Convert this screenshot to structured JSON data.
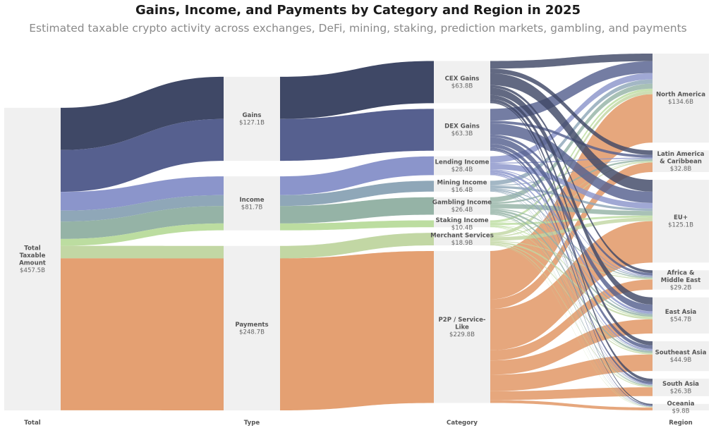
{
  "title": "Gains, Income, and Payments by Category and Region in 2025",
  "subtitle": "Estimated taxable crypto activity across exchanges, DeFi, mining, staking, prediction markets, gambling, and payments",
  "chart_data": {
    "type": "sankey",
    "unit": "$B",
    "columns": [
      "Total",
      "Type",
      "Category",
      "Region"
    ],
    "nodes": [
      {
        "id": "total",
        "column": 0,
        "label": "Total Taxable Amount",
        "value_label": "$457.5B",
        "value": 457.5
      },
      {
        "id": "gains",
        "column": 1,
        "label": "Gains",
        "value_label": "$127.1B",
        "value": 127.1
      },
      {
        "id": "income",
        "column": 1,
        "label": "Income",
        "value_label": "$81.7B",
        "value": 81.7
      },
      {
        "id": "payments",
        "column": 1,
        "label": "Payments",
        "value_label": "$248.7B",
        "value": 248.7
      },
      {
        "id": "cex",
        "column": 2,
        "label": "CEX Gains",
        "value_label": "$63.8B",
        "value": 63.8,
        "color": "#3f4866"
      },
      {
        "id": "dex",
        "column": 2,
        "label": "DEX Gains",
        "value_label": "$63.3B",
        "value": 63.3,
        "color": "#56608f"
      },
      {
        "id": "lending",
        "column": 2,
        "label": "Lending Income",
        "value_label": "$28.4B",
        "value": 28.4,
        "color": "#8b95cb"
      },
      {
        "id": "mining",
        "column": 2,
        "label": "Mining Income",
        "value_label": "$16.4B",
        "value": 16.4,
        "color": "#8fa7b8"
      },
      {
        "id": "gambling",
        "column": 2,
        "label": "Gambling Income",
        "value_label": "$26.4B",
        "value": 26.4,
        "color": "#95b3a6"
      },
      {
        "id": "staking",
        "column": 2,
        "label": "Staking Income",
        "value_label": "$10.4B",
        "value": 10.4,
        "color": "#bcdda0"
      },
      {
        "id": "merchant",
        "column": 2,
        "label": "Merchant Services",
        "value_label": "$18.9B",
        "value": 18.9,
        "color": "#c2d7a4"
      },
      {
        "id": "p2p",
        "column": 2,
        "label": "P2P / Service-Like",
        "value_label": "$229.8B",
        "value": 229.8,
        "color": "#e4a072"
      },
      {
        "id": "na",
        "column": 3,
        "label": "North America",
        "value_label": "$134.6B",
        "value": 134.6
      },
      {
        "id": "latam",
        "column": 3,
        "label": "Latin America & Caribbean",
        "value_label": "$32.8B",
        "value": 32.8
      },
      {
        "id": "eu",
        "column": 3,
        "label": "EU+",
        "value_label": "$125.1B",
        "value": 125.1
      },
      {
        "id": "mea",
        "column": 3,
        "label": "Africa & Middle East",
        "value_label": "$29.2B",
        "value": 29.2
      },
      {
        "id": "eastasia",
        "column": 3,
        "label": "East Asia",
        "value_label": "$54.7B",
        "value": 54.7
      },
      {
        "id": "sea",
        "column": 3,
        "label": "Southeast Asia",
        "value_label": "$44.9B",
        "value": 44.9
      },
      {
        "id": "southasia",
        "column": 3,
        "label": "South Asia",
        "value_label": "$26.3B",
        "value": 26.3
      },
      {
        "id": "oceania",
        "column": 3,
        "label": "Oceania",
        "value_label": "$9.8B",
        "value": 9.8
      }
    ],
    "links": [
      {
        "source": "total",
        "target": "gains",
        "via": "cex",
        "value": 63.8
      },
      {
        "source": "total",
        "target": "gains",
        "via": "dex",
        "value": 63.3
      },
      {
        "source": "total",
        "target": "income",
        "via": "lending",
        "value": 28.4
      },
      {
        "source": "total",
        "target": "income",
        "via": "mining",
        "value": 16.4
      },
      {
        "source": "total",
        "target": "income",
        "via": "gambling",
        "value": 26.4
      },
      {
        "source": "total",
        "target": "income",
        "via": "staking",
        "value": 10.4
      },
      {
        "source": "total",
        "target": "payments",
        "via": "merchant",
        "value": 18.9
      },
      {
        "source": "total",
        "target": "payments",
        "via": "p2p",
        "value": 229.8
      },
      {
        "source": "gains",
        "target": "cex",
        "value": 63.8
      },
      {
        "source": "gains",
        "target": "dex",
        "value": 63.3
      },
      {
        "source": "income",
        "target": "lending",
        "value": 28.4
      },
      {
        "source": "income",
        "target": "mining",
        "value": 16.4
      },
      {
        "source": "income",
        "target": "gambling",
        "value": 26.4
      },
      {
        "source": "income",
        "target": "staking",
        "value": 10.4
      },
      {
        "source": "payments",
        "target": "merchant",
        "value": 18.9
      },
      {
        "source": "payments",
        "target": "p2p",
        "value": 229.8
      },
      {
        "source": "cex",
        "target": "na",
        "value": 11.5
      },
      {
        "source": "cex",
        "target": "latam",
        "value": 7.0
      },
      {
        "source": "cex",
        "target": "eu",
        "value": 18.0
      },
      {
        "source": "cex",
        "target": "mea",
        "value": 4.0
      },
      {
        "source": "cex",
        "target": "eastasia",
        "value": 11.0
      },
      {
        "source": "cex",
        "target": "sea",
        "value": 6.0
      },
      {
        "source": "cex",
        "target": "southasia",
        "value": 4.5
      },
      {
        "source": "cex",
        "target": "oceania",
        "value": 1.8
      },
      {
        "source": "dex",
        "target": "na",
        "value": 18.0
      },
      {
        "source": "dex",
        "target": "latam",
        "value": 4.0
      },
      {
        "source": "dex",
        "target": "eu",
        "value": 17.0
      },
      {
        "source": "dex",
        "target": "mea",
        "value": 4.0
      },
      {
        "source": "dex",
        "target": "eastasia",
        "value": 10.0
      },
      {
        "source": "dex",
        "target": "sea",
        "value": 5.5
      },
      {
        "source": "dex",
        "target": "southasia",
        "value": 3.5
      },
      {
        "source": "dex",
        "target": "oceania",
        "value": 1.3
      },
      {
        "source": "lending",
        "target": "na",
        "value": 9.5
      },
      {
        "source": "lending",
        "target": "latam",
        "value": 1.5
      },
      {
        "source": "lending",
        "target": "eu",
        "value": 8.5
      },
      {
        "source": "lending",
        "target": "mea",
        "value": 1.2
      },
      {
        "source": "lending",
        "target": "eastasia",
        "value": 3.5
      },
      {
        "source": "lending",
        "target": "sea",
        "value": 2.5
      },
      {
        "source": "lending",
        "target": "southasia",
        "value": 1.2
      },
      {
        "source": "lending",
        "target": "oceania",
        "value": 0.5
      },
      {
        "source": "mining",
        "target": "na",
        "value": 6.5
      },
      {
        "source": "mining",
        "target": "latam",
        "value": 1.2
      },
      {
        "source": "mining",
        "target": "eu",
        "value": 3.5
      },
      {
        "source": "mining",
        "target": "mea",
        "value": 1.5
      },
      {
        "source": "mining",
        "target": "eastasia",
        "value": 1.8
      },
      {
        "source": "mining",
        "target": "sea",
        "value": 0.9
      },
      {
        "source": "mining",
        "target": "southasia",
        "value": 0.6
      },
      {
        "source": "mining",
        "target": "oceania",
        "value": 0.4
      },
      {
        "source": "gambling",
        "target": "na",
        "value": 7.5
      },
      {
        "source": "gambling",
        "target": "latam",
        "value": 2.5
      },
      {
        "source": "gambling",
        "target": "eu",
        "value": 7.0
      },
      {
        "source": "gambling",
        "target": "mea",
        "value": 1.5
      },
      {
        "source": "gambling",
        "target": "eastasia",
        "value": 3.0
      },
      {
        "source": "gambling",
        "target": "sea",
        "value": 2.8
      },
      {
        "source": "gambling",
        "target": "southasia",
        "value": 1.5
      },
      {
        "source": "gambling",
        "target": "oceania",
        "value": 0.6
      },
      {
        "source": "staking",
        "target": "na",
        "value": 3.5
      },
      {
        "source": "staking",
        "target": "latam",
        "value": 0.6
      },
      {
        "source": "staking",
        "target": "eu",
        "value": 3.0
      },
      {
        "source": "staking",
        "target": "mea",
        "value": 0.5
      },
      {
        "source": "staking",
        "target": "eastasia",
        "value": 1.3
      },
      {
        "source": "staking",
        "target": "sea",
        "value": 0.8
      },
      {
        "source": "staking",
        "target": "southasia",
        "value": 0.4
      },
      {
        "source": "staking",
        "target": "oceania",
        "value": 0.3
      },
      {
        "source": "merchant",
        "target": "na",
        "value": 5.0
      },
      {
        "source": "merchant",
        "target": "latam",
        "value": 1.5
      },
      {
        "source": "merchant",
        "target": "eu",
        "value": 5.5
      },
      {
        "source": "merchant",
        "target": "mea",
        "value": 1.2
      },
      {
        "source": "merchant",
        "target": "eastasia",
        "value": 2.5
      },
      {
        "source": "merchant",
        "target": "sea",
        "value": 1.5
      },
      {
        "source": "merchant",
        "target": "southasia",
        "value": 1.2
      },
      {
        "source": "merchant",
        "target": "oceania",
        "value": 0.5
      },
      {
        "source": "p2p",
        "target": "na",
        "value": 73.1
      },
      {
        "source": "p2p",
        "target": "latam",
        "value": 14.5
      },
      {
        "source": "p2p",
        "target": "eu",
        "value": 62.6
      },
      {
        "source": "p2p",
        "target": "mea",
        "value": 15.3
      },
      {
        "source": "p2p",
        "target": "eastasia",
        "value": 21.6
      },
      {
        "source": "p2p",
        "target": "sea",
        "value": 24.9
      },
      {
        "source": "p2p",
        "target": "southasia",
        "value": 13.4
      },
      {
        "source": "p2p",
        "target": "oceania",
        "value": 4.4
      }
    ]
  }
}
